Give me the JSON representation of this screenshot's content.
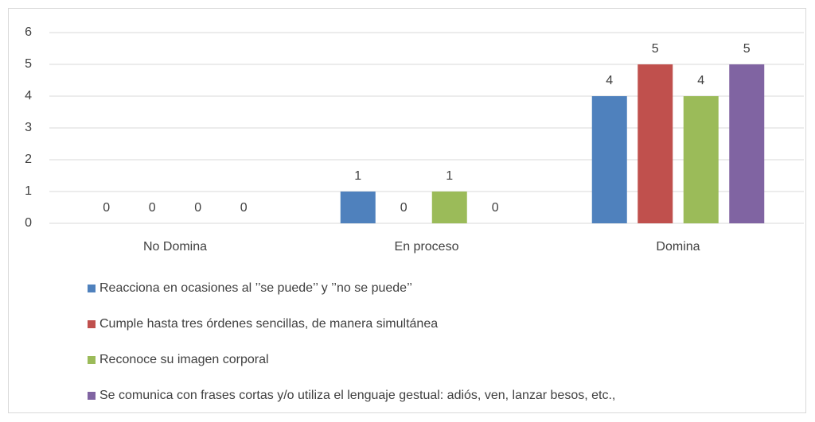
{
  "chart_data": {
    "type": "bar",
    "categories": [
      "No Domina",
      "En proceso",
      "Domina"
    ],
    "series": [
      {
        "name": "Reacciona en ocasiones al ’’se puede’’ y ’’no se puede’’",
        "color": "#4f81bd",
        "values": [
          0,
          1,
          4
        ]
      },
      {
        "name": "Cumple hasta tres órdenes sencillas, de manera simultánea",
        "color": "#c0504d",
        "values": [
          0,
          0,
          5
        ]
      },
      {
        "name": "Reconoce su imagen corporal",
        "color": "#9bbb59",
        "values": [
          0,
          1,
          4
        ]
      },
      {
        "name": "Se comunica con frases cortas y/o utiliza el lenguaje gestual: adiós, ven, lanzar besos, etc.,",
        "color": "#8064a2",
        "values": [
          0,
          0,
          5
        ]
      }
    ],
    "ylim": [
      0,
      6
    ],
    "yticks": [
      0,
      1,
      2,
      3,
      4,
      5,
      6
    ],
    "grid": true,
    "legend": "bottom"
  }
}
